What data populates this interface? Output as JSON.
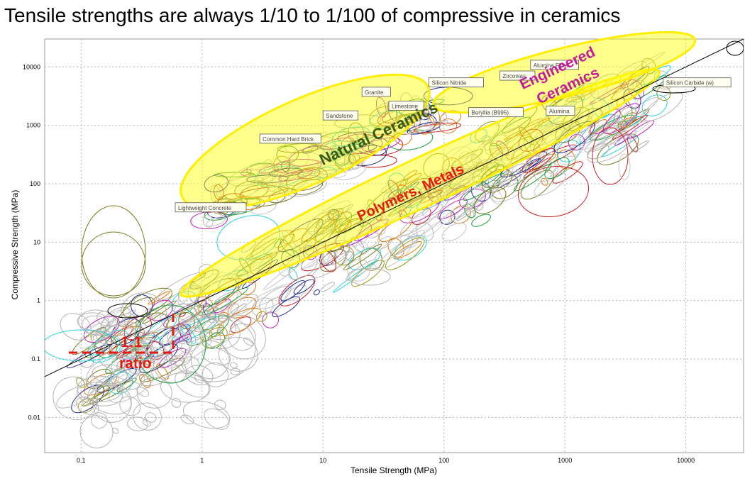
{
  "slide": {
    "title": "Tensile strengths are always 1/10 to 1/100 of compressive in ceramics"
  },
  "chart_data": {
    "type": "scatter",
    "scale": "log-log",
    "grid": true,
    "xlabel": "Tensile Strength (MPa)",
    "ylabel": "Compressive Strength (MPa)",
    "xlim": [
      0.05,
      30000
    ],
    "ylim": [
      0.0025,
      30000
    ],
    "x_ticks": [
      0.1,
      1,
      10,
      100,
      1000,
      10000
    ],
    "x_tick_labels": [
      "0.1",
      "1",
      "10",
      "100",
      "1000",
      "10000"
    ],
    "y_ticks": [
      0.01,
      0.1,
      1,
      10,
      100,
      1000,
      10000
    ],
    "y_tick_labels": [
      "0.01",
      "0.1",
      "1",
      "10",
      "100",
      "1000",
      "10000"
    ],
    "reference_line": {
      "label": "1:1 ratio",
      "slope": 1,
      "color": "#e8170f"
    },
    "material_labels": [
      {
        "text": "Lightweight Concrete",
        "x": 0.6,
        "y": 40
      },
      {
        "text": "Common Hard Brick",
        "x": 3,
        "y": 600
      },
      {
        "text": "Sandstone",
        "x": 10,
        "y": 1500
      },
      {
        "text": "Granite",
        "x": 21,
        "y": 3800
      },
      {
        "text": "Limestone",
        "x": 35,
        "y": 2200
      },
      {
        "text": "Silicon Nitride",
        "x": 75,
        "y": 5500
      },
      {
        "text": "Beryllia (B995)",
        "x": 160,
        "y": 1700
      },
      {
        "text": "Zirconias",
        "x": 290,
        "y": 7200
      },
      {
        "text": "Alumina Fibre",
        "x": 520,
        "y": 11000
      },
      {
        "text": "Alumina",
        "x": 700,
        "y": 1800
      },
      {
        "text": "Silicon Carbide (w)",
        "x": 6500,
        "y": 5500
      }
    ],
    "regions": [
      {
        "name": "Natural Ceramics",
        "color": "#365a18",
        "cx": 30,
        "cy": 600,
        "size": 22
      },
      {
        "name": "Polymers, Metals",
        "color": "#e8170f",
        "cx": 55,
        "cy": 60,
        "size": 20
      },
      {
        "name": "Engineered",
        "color": "#c41a9c",
        "cx": 900,
        "cy": 8000,
        "size": 21
      },
      {
        "name": "Ceramics",
        "color": "#c41a9c",
        "cx": 1100,
        "cy": 4000,
        "size": 21
      }
    ]
  }
}
